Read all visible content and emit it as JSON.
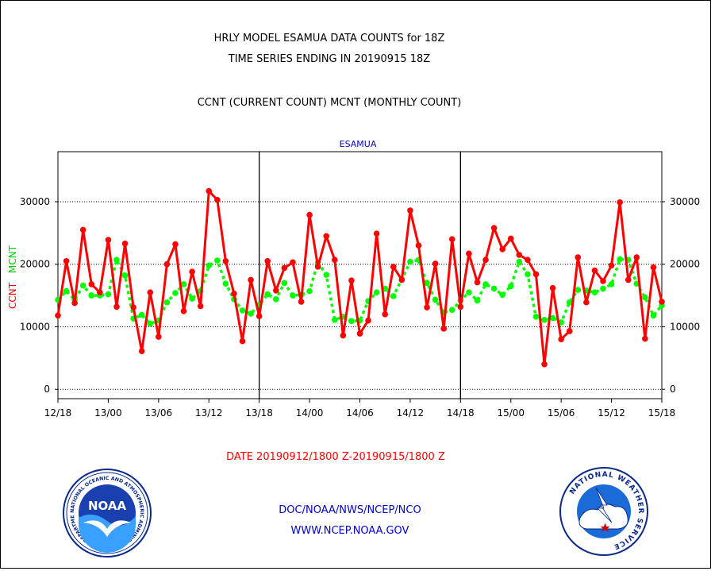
{
  "titles": {
    "line1": "HRLY MODEL ESAMUA DATA COUNTS for 18Z",
    "line2": "TIME SERIES ENDING IN 20190915 18Z",
    "line3": "CCNT (CURRENT COUNT) MCNT (MONTHLY COUNT)"
  },
  "footer": {
    "date_range": "DATE 20190912/1800 Z-20190915/1800 Z",
    "org": "DOC/NOAA/NWS/NCEP/NCO",
    "url": "WWW.NCEP.NOAA.GOV"
  },
  "logos": {
    "noaa": {
      "text": "NOAA",
      "ring_text": "NATIONAL OCEANIC AND ATMOSPHERIC ADMINISTRATION · U.S. DEPARTMENT OF COMMERCE",
      "icon": "noaa-logo-icon"
    },
    "nws": {
      "ring_text": "NATIONAL WEATHER SERVICE",
      "icon": "nws-logo-icon"
    }
  },
  "colors": {
    "ccnt": "#ff0000",
    "mcnt": "#00ff00",
    "title": "#000000",
    "date": "#ff0000",
    "station": "#0000cc",
    "links": "#0000cc"
  },
  "chart_data": {
    "type": "line",
    "title": "ESAMUA",
    "ylabel_ccnt": "CCNT",
    "ylabel_mcnt": "MCNT",
    "ylim": [
      -1500,
      38000
    ],
    "yticks": [
      0,
      10000,
      20000,
      30000
    ],
    "ytick_labels": [
      "0",
      "10000",
      "20000",
      "30000"
    ],
    "xticks": [
      0,
      6,
      12,
      18,
      24,
      30,
      36,
      42,
      48,
      54,
      60,
      66,
      72
    ],
    "xtick_labels": [
      "12/18",
      "13/00",
      "13/06",
      "13/12",
      "13/18",
      "14/00",
      "14/06",
      "14/12",
      "14/18",
      "15/00",
      "15/06",
      "15/12",
      "15/18"
    ],
    "day_dividers": [
      24,
      48
    ],
    "grid": "horizontal dotted at y ticks",
    "x": [
      0,
      1,
      2,
      3,
      4,
      5,
      6,
      7,
      8,
      9,
      10,
      11,
      12,
      13,
      14,
      15,
      16,
      17,
      18,
      19,
      20,
      21,
      22,
      23,
      24,
      25,
      26,
      27,
      28,
      29,
      30,
      31,
      32,
      33,
      34,
      35,
      36,
      37,
      38,
      39,
      40,
      41,
      42,
      43,
      44,
      45,
      46,
      47,
      48,
      49,
      50,
      51,
      52,
      53,
      54,
      55,
      56,
      57,
      58,
      59,
      60,
      61,
      62,
      63,
      64,
      65,
      66,
      67,
      68,
      69,
      70,
      71,
      72
    ],
    "series": [
      {
        "name": "CCNT",
        "values": [
          11800,
          20500,
          13800,
          25500,
          16800,
          15500,
          23900,
          13200,
          23300,
          13100,
          6100,
          15500,
          8400,
          20000,
          23200,
          12500,
          18800,
          13300,
          31700,
          30300,
          20500,
          15300,
          7700,
          17500,
          11700,
          20500,
          15800,
          19400,
          20300,
          14000,
          27900,
          19600,
          24500,
          20700,
          8600,
          17400,
          8900,
          11000,
          24900,
          12000,
          19600,
          17500,
          28600,
          23000,
          13100,
          20100,
          9700,
          24000,
          13200,
          21700,
          17100,
          20700,
          25800,
          22400,
          24100,
          21500,
          20700,
          18400,
          4000,
          16200,
          8000,
          9300,
          21100,
          13900,
          19000,
          17300,
          19800,
          29900,
          17500,
          21100,
          8100,
          19500,
          14000
        ]
      },
      {
        "name": "MCNT",
        "values": [
          14300,
          15700,
          14300,
          16600,
          15000,
          15000,
          15200,
          20700,
          18200,
          11300,
          11900,
          10500,
          11000,
          13900,
          15400,
          16800,
          14500,
          15700,
          19800,
          20600,
          16900,
          14400,
          12600,
          12100,
          13500,
          15200,
          14400,
          17000,
          15000,
          15100,
          15700,
          20300,
          18300,
          11100,
          11600,
          10900,
          11000,
          14100,
          15500,
          16100,
          14900,
          17600,
          20400,
          20700,
          17000,
          14300,
          12300,
          12700,
          14200,
          15500,
          14200,
          16800,
          16100,
          15100,
          16500,
          20400,
          18400,
          11600,
          11100,
          11400,
          10700,
          13900,
          15900,
          15800,
          15500,
          16100,
          16800,
          20800,
          20700,
          16900,
          14700,
          11800,
          13400
        ]
      }
    ]
  }
}
